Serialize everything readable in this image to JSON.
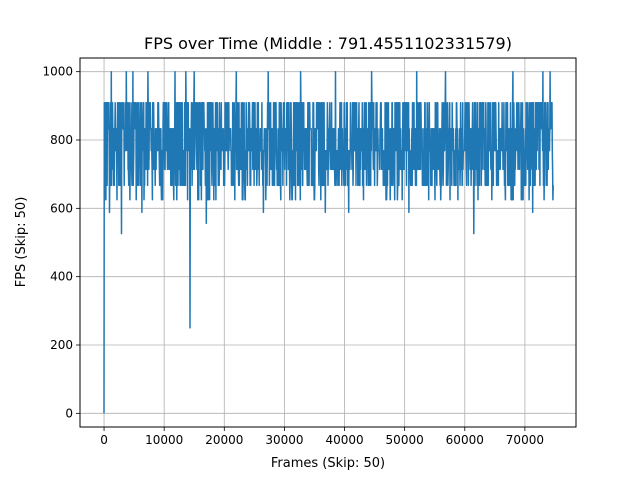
{
  "chart_data": {
    "type": "line",
    "title": "FPS over Time (Middle : 791.4551102331579)",
    "xlabel": "Frames (Skip: 50)",
    "ylabel": "FPS (Skip: 50)",
    "xlim": [
      -4000,
      78500
    ],
    "ylim": [
      -40,
      1040
    ],
    "xticks": [
      0,
      10000,
      20000,
      30000,
      40000,
      50000,
      60000,
      70000
    ],
    "xtick_labels": [
      "0",
      "10000",
      "20000",
      "30000",
      "40000",
      "50000",
      "60000",
      "70000"
    ],
    "yticks": [
      0,
      200,
      400,
      600,
      800,
      1000
    ],
    "ytick_labels": [
      "0",
      "200",
      "400",
      "600",
      "800",
      "1000"
    ],
    "grid": true,
    "series": [
      {
        "color": "#1f77b4",
        "x_start": 0,
        "x_step": 50,
        "x_end": 74700,
        "baseline_level": 770,
        "discrete_levels": [
          588,
          625,
          667,
          714,
          769,
          833,
          909,
          1000
        ],
        "values_approx": [
          [
            0,
            0
          ],
          [
            100,
            770
          ],
          [
            300,
            625
          ],
          [
            600,
            909
          ],
          [
            900,
            588
          ],
          [
            1200,
            1000
          ],
          [
            1600,
            667
          ],
          [
            2300,
            909
          ],
          [
            2900,
            526
          ],
          [
            3300,
            909
          ],
          [
            3700,
            1000
          ],
          [
            4300,
            625
          ],
          [
            4800,
            1000
          ],
          [
            6300,
            588
          ],
          [
            7300,
            1000
          ],
          [
            9500,
            667
          ],
          [
            11800,
            1000
          ],
          [
            12800,
            667
          ],
          [
            13600,
            1000
          ],
          [
            13900,
            625
          ],
          [
            14300,
            250
          ],
          [
            14600,
            909
          ],
          [
            15000,
            1000
          ],
          [
            15600,
            625
          ],
          [
            16500,
            909
          ],
          [
            17000,
            556
          ],
          [
            17500,
            909
          ],
          [
            19000,
            667
          ],
          [
            22000,
            1000
          ],
          [
            23000,
            625
          ],
          [
            26500,
            588
          ],
          [
            27300,
            1000
          ],
          [
            29000,
            667
          ],
          [
            32700,
            1000
          ],
          [
            35000,
            625
          ],
          [
            36800,
            588
          ],
          [
            38500,
            1000
          ],
          [
            40700,
            588
          ],
          [
            42000,
            909
          ],
          [
            44500,
            1000
          ],
          [
            47600,
            625
          ],
          [
            50700,
            588
          ],
          [
            52000,
            1000
          ],
          [
            54000,
            625
          ],
          [
            56800,
            1000
          ],
          [
            59000,
            714
          ],
          [
            61500,
            526
          ],
          [
            62500,
            909
          ],
          [
            64500,
            625
          ],
          [
            66200,
            909
          ],
          [
            68000,
            1000
          ],
          [
            69500,
            625
          ],
          [
            71300,
            588
          ],
          [
            73000,
            1000
          ],
          [
            74200,
            1000
          ],
          [
            74700,
            667
          ]
        ]
      }
    ]
  }
}
